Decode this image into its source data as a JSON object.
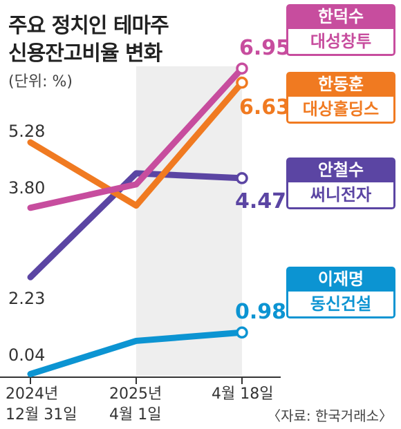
{
  "title_lines": [
    "주요 정치인 테마주",
    "신용잔고비율 변화"
  ],
  "unit": "(단위: %)",
  "source": "〈자료: 한국거래소〉",
  "chart_data": {
    "type": "line",
    "title": "주요 정치인 테마주 신용잔고비율 변화",
    "ylabel": "%",
    "x": [
      "2024년 12월 31일",
      "2025년 4월 1일",
      "4월 18일"
    ],
    "x_labels": [
      [
        "2024년",
        "12월 31일"
      ],
      [
        "2025년",
        "4월 1일"
      ],
      [
        "4월 18일"
      ]
    ],
    "series": [
      {
        "name": "한덕수",
        "company": "대성창투",
        "color": "#c74d9e",
        "values": [
          3.8,
          4.33,
          6.95
        ],
        "start_label": "3.80",
        "end_label": "6.95"
      },
      {
        "name": "한동훈",
        "company": "대상홀딩스",
        "color": "#f07a21",
        "values": [
          5.28,
          3.85,
          6.63
        ],
        "start_label": "5.28",
        "end_label": "6.63"
      },
      {
        "name": "안철수",
        "company": "써니전자",
        "color": "#5b45a3",
        "values": [
          2.23,
          4.58,
          4.47
        ],
        "start_label": "2.23",
        "end_label": "4.47"
      },
      {
        "name": "이재명",
        "company": "동신건설",
        "color": "#0c94d2",
        "values": [
          0.04,
          0.79,
          0.98
        ],
        "start_label": "0.04",
        "end_label": "0.98"
      }
    ],
    "highlight_between": [
      "2025년 4월 1일",
      "4월 18일"
    ],
    "grid": false
  }
}
